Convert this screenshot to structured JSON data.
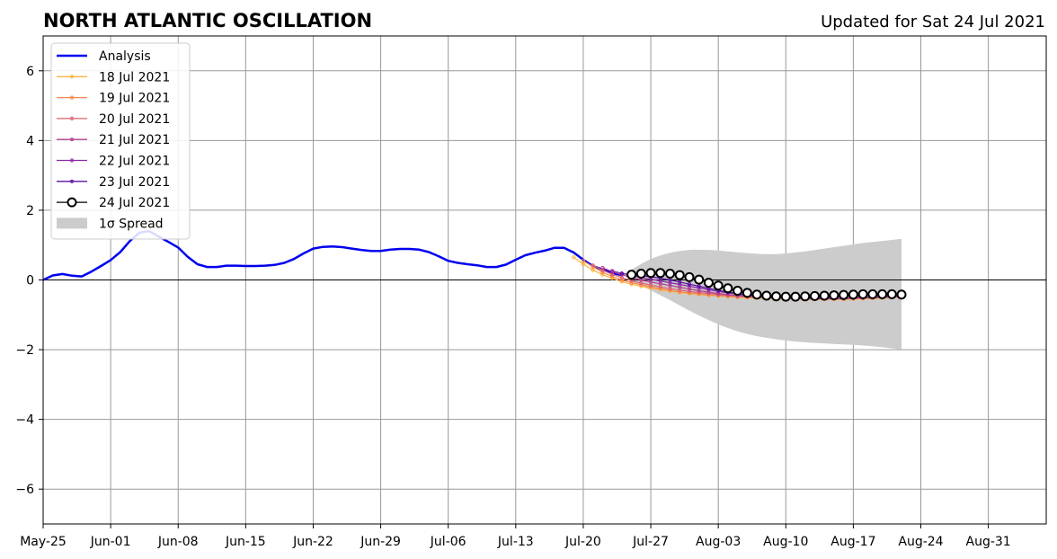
{
  "chart_data": {
    "type": "line",
    "title": "NORTH ATLANTIC OSCILLATION",
    "subtitle": "Updated for Sat 24 Jul 2021",
    "xlabel": "",
    "ylabel": "",
    "xlim": [
      "2021-05-25",
      "2021-09-06"
    ],
    "ylim": [
      -7,
      7
    ],
    "yticks": [
      -6,
      -4,
      -2,
      0,
      2,
      4,
      6
    ],
    "ytick_labels": [
      "−6",
      "−4",
      "−2",
      "0",
      "2",
      "4",
      "6"
    ],
    "xticks": [
      "2021-05-25",
      "2021-06-01",
      "2021-06-08",
      "2021-06-15",
      "2021-06-22",
      "2021-06-29",
      "2021-07-06",
      "2021-07-13",
      "2021-07-20",
      "2021-07-27",
      "2021-08-03",
      "2021-08-10",
      "2021-08-17",
      "2021-08-24",
      "2021-08-31"
    ],
    "xtick_labels": [
      "May-25",
      "Jun-01",
      "Jun-08",
      "Jun-15",
      "Jun-22",
      "Jun-29",
      "Jul-06",
      "Jul-13",
      "Jul-20",
      "Jul-27",
      "Aug-03",
      "Aug-10",
      "Aug-17",
      "Aug-24",
      "Aug-31"
    ],
    "grid": true,
    "legend_position": "top-left",
    "zero_line": true,
    "series": [
      {
        "name": "Analysis",
        "color": "#0000ee",
        "x": [
          "2021-05-25",
          "2021-05-26",
          "2021-05-27",
          "2021-05-28",
          "2021-05-29",
          "2021-05-30",
          "2021-05-31",
          "2021-06-01",
          "2021-06-02",
          "2021-06-03",
          "2021-06-04",
          "2021-06-05",
          "2021-06-06",
          "2021-06-07",
          "2021-06-08",
          "2021-06-09",
          "2021-06-10",
          "2021-06-11",
          "2021-06-12",
          "2021-06-13",
          "2021-06-14",
          "2021-06-15",
          "2021-06-16",
          "2021-06-17",
          "2021-06-18",
          "2021-06-19",
          "2021-06-20",
          "2021-06-21",
          "2021-06-22",
          "2021-06-23",
          "2021-06-24",
          "2021-06-25",
          "2021-06-26",
          "2021-06-27",
          "2021-06-28",
          "2021-06-29",
          "2021-06-30",
          "2021-07-01",
          "2021-07-02",
          "2021-07-03",
          "2021-07-04",
          "2021-07-05",
          "2021-07-06",
          "2021-07-07",
          "2021-07-08",
          "2021-07-09",
          "2021-07-10",
          "2021-07-11",
          "2021-07-12",
          "2021-07-13",
          "2021-07-14",
          "2021-07-15",
          "2021-07-16",
          "2021-07-17",
          "2021-07-18",
          "2021-07-19",
          "2021-07-20",
          "2021-07-21",
          "2021-07-22",
          "2021-07-23",
          "2021-07-24"
        ],
        "values": [
          0.0,
          0.13,
          0.17,
          0.12,
          0.1,
          0.24,
          0.4,
          0.57,
          0.8,
          1.12,
          1.36,
          1.4,
          1.24,
          1.09,
          0.93,
          0.66,
          0.45,
          0.37,
          0.37,
          0.41,
          0.41,
          0.4,
          0.4,
          0.41,
          0.43,
          0.49,
          0.6,
          0.76,
          0.9,
          0.95,
          0.96,
          0.94,
          0.9,
          0.86,
          0.83,
          0.83,
          0.87,
          0.89,
          0.89,
          0.87,
          0.8,
          0.68,
          0.55,
          0.49,
          0.45,
          0.42,
          0.37,
          0.37,
          0.44,
          0.58,
          0.71,
          0.78,
          0.84,
          0.92,
          0.92,
          0.79,
          0.58,
          0.4,
          0.3,
          0.2,
          0.14
        ]
      },
      {
        "name": "18 Jul 2021",
        "color": "#fbb33e",
        "x": [
          "2021-07-19",
          "2021-07-20",
          "2021-07-21",
          "2021-07-22",
          "2021-07-23",
          "2021-07-24",
          "2021-07-25",
          "2021-07-26",
          "2021-07-27",
          "2021-07-28",
          "2021-07-29",
          "2021-07-30",
          "2021-07-31",
          "2021-08-01",
          "2021-08-02",
          "2021-08-03",
          "2021-08-04",
          "2021-08-05",
          "2021-08-06",
          "2021-08-07",
          "2021-08-08",
          "2021-08-09",
          "2021-08-10",
          "2021-08-11",
          "2021-08-12",
          "2021-08-13",
          "2021-08-14",
          "2021-08-15",
          "2021-08-16",
          "2021-08-17",
          "2021-08-18",
          "2021-08-19",
          "2021-08-20",
          "2021-08-21",
          "2021-08-22"
        ],
        "values": [
          0.65,
          0.45,
          0.28,
          0.15,
          0.05,
          -0.05,
          -0.12,
          -0.18,
          -0.23,
          -0.28,
          -0.32,
          -0.36,
          -0.39,
          -0.42,
          -0.44,
          -0.46,
          -0.48,
          -0.5,
          -0.51,
          -0.52,
          -0.53,
          -0.54,
          -0.55,
          -0.55,
          -0.56,
          -0.56,
          -0.56,
          -0.56,
          -0.56,
          -0.55,
          -0.54,
          -0.53,
          -0.52,
          -0.5,
          -0.49
        ]
      },
      {
        "name": "19 Jul 2021",
        "color": "#f5884a",
        "x": [
          "2021-07-20",
          "2021-07-21",
          "2021-07-22",
          "2021-07-23",
          "2021-07-24",
          "2021-07-25",
          "2021-07-26",
          "2021-07-27",
          "2021-07-28",
          "2021-07-29",
          "2021-07-30",
          "2021-07-31",
          "2021-08-01",
          "2021-08-02",
          "2021-08-03",
          "2021-08-04",
          "2021-08-05",
          "2021-08-06",
          "2021-08-07",
          "2021-08-08",
          "2021-08-09",
          "2021-08-10",
          "2021-08-11",
          "2021-08-12",
          "2021-08-13",
          "2021-08-14",
          "2021-08-15",
          "2021-08-16",
          "2021-08-17",
          "2021-08-18",
          "2021-08-19",
          "2021-08-20",
          "2021-08-21",
          "2021-08-22"
        ],
        "values": [
          0.55,
          0.38,
          0.22,
          0.1,
          0.0,
          -0.08,
          -0.14,
          -0.2,
          -0.25,
          -0.3,
          -0.34,
          -0.37,
          -0.4,
          -0.43,
          -0.45,
          -0.47,
          -0.49,
          -0.5,
          -0.51,
          -0.52,
          -0.53,
          -0.54,
          -0.54,
          -0.55,
          -0.55,
          -0.55,
          -0.55,
          -0.55,
          -0.54,
          -0.53,
          -0.52,
          -0.51,
          -0.5,
          -0.48
        ]
      },
      {
        "name": "20 Jul 2021",
        "color": "#de5f6f",
        "x": [
          "2021-07-21",
          "2021-07-22",
          "2021-07-23",
          "2021-07-24",
          "2021-07-25",
          "2021-07-26",
          "2021-07-27",
          "2021-07-28",
          "2021-07-29",
          "2021-07-30",
          "2021-07-31",
          "2021-08-01",
          "2021-08-02",
          "2021-08-03",
          "2021-08-04",
          "2021-08-05",
          "2021-08-06",
          "2021-08-07",
          "2021-08-08",
          "2021-08-09",
          "2021-08-10",
          "2021-08-11",
          "2021-08-12",
          "2021-08-13",
          "2021-08-14",
          "2021-08-15",
          "2021-08-16",
          "2021-08-17",
          "2021-08-18",
          "2021-08-19",
          "2021-08-20",
          "2021-08-21",
          "2021-08-22"
        ],
        "values": [
          0.42,
          0.28,
          0.16,
          0.07,
          -0.02,
          -0.09,
          -0.15,
          -0.2,
          -0.25,
          -0.29,
          -0.33,
          -0.36,
          -0.39,
          -0.42,
          -0.44,
          -0.46,
          -0.47,
          -0.48,
          -0.49,
          -0.5,
          -0.5,
          -0.51,
          -0.51,
          -0.51,
          -0.51,
          -0.51,
          -0.51,
          -0.5,
          -0.5,
          -0.49,
          -0.48,
          -0.47,
          -0.46
        ]
      },
      {
        "name": "21 Jul 2021",
        "color": "#b33c8e",
        "x": [
          "2021-07-22",
          "2021-07-23",
          "2021-07-24",
          "2021-07-25",
          "2021-07-26",
          "2021-07-27",
          "2021-07-28",
          "2021-07-29",
          "2021-07-30",
          "2021-07-31",
          "2021-08-01",
          "2021-08-02",
          "2021-08-03",
          "2021-08-04",
          "2021-08-05",
          "2021-08-06",
          "2021-08-07",
          "2021-08-08",
          "2021-08-09",
          "2021-08-10",
          "2021-08-11",
          "2021-08-12",
          "2021-08-13",
          "2021-08-14",
          "2021-08-15",
          "2021-08-16",
          "2021-08-17",
          "2021-08-18",
          "2021-08-19",
          "2021-08-20",
          "2021-08-21",
          "2021-08-22"
        ],
        "values": [
          0.35,
          0.24,
          0.15,
          0.07,
          0.0,
          -0.06,
          -0.11,
          -0.16,
          -0.21,
          -0.26,
          -0.31,
          -0.35,
          -0.39,
          -0.42,
          -0.45,
          -0.47,
          -0.49,
          -0.5,
          -0.51,
          -0.52,
          -0.52,
          -0.53,
          -0.53,
          -0.53,
          -0.53,
          -0.52,
          -0.52,
          -0.51,
          -0.5,
          -0.49,
          -0.48,
          -0.47
        ]
      },
      {
        "name": "22 Jul 2021",
        "color": "#8b28a6",
        "x": [
          "2021-07-23",
          "2021-07-24",
          "2021-07-25",
          "2021-07-26",
          "2021-07-27",
          "2021-07-28",
          "2021-07-29",
          "2021-07-30",
          "2021-07-31",
          "2021-08-01",
          "2021-08-02",
          "2021-08-03",
          "2021-08-04",
          "2021-08-05",
          "2021-08-06",
          "2021-08-07",
          "2021-08-08",
          "2021-08-09",
          "2021-08-10",
          "2021-08-11",
          "2021-08-12",
          "2021-08-13",
          "2021-08-14",
          "2021-08-15",
          "2021-08-16",
          "2021-08-17",
          "2021-08-18",
          "2021-08-19",
          "2021-08-20",
          "2021-08-21",
          "2021-08-22"
        ],
        "values": [
          0.26,
          0.19,
          0.13,
          0.07,
          0.02,
          -0.03,
          -0.08,
          -0.13,
          -0.18,
          -0.23,
          -0.28,
          -0.33,
          -0.37,
          -0.41,
          -0.44,
          -0.47,
          -0.49,
          -0.51,
          -0.52,
          -0.53,
          -0.53,
          -0.54,
          -0.54,
          -0.53,
          -0.53,
          -0.52,
          -0.51,
          -0.5,
          -0.49,
          -0.48,
          -0.47
        ]
      },
      {
        "name": "23 Jul 2021",
        "color": "#5a0fa0",
        "x": [
          "2021-07-24",
          "2021-07-25",
          "2021-07-26",
          "2021-07-27",
          "2021-07-28",
          "2021-07-29",
          "2021-07-30",
          "2021-07-31",
          "2021-08-01",
          "2021-08-02",
          "2021-08-03",
          "2021-08-04",
          "2021-08-05",
          "2021-08-06",
          "2021-08-07",
          "2021-08-08",
          "2021-08-09",
          "2021-08-10",
          "2021-08-11",
          "2021-08-12",
          "2021-08-13",
          "2021-08-14",
          "2021-08-15",
          "2021-08-16",
          "2021-08-17",
          "2021-08-18",
          "2021-08-19",
          "2021-08-20",
          "2021-08-21",
          "2021-08-22"
        ],
        "values": [
          0.18,
          0.15,
          0.12,
          0.09,
          0.05,
          0.0,
          -0.06,
          -0.12,
          -0.18,
          -0.24,
          -0.3,
          -0.35,
          -0.39,
          -0.42,
          -0.45,
          -0.47,
          -0.49,
          -0.5,
          -0.5,
          -0.5,
          -0.5,
          -0.49,
          -0.48,
          -0.47,
          -0.46,
          -0.45,
          -0.44,
          -0.43,
          -0.42,
          -0.41
        ]
      },
      {
        "name": "24 Jul 2021",
        "color": "#000000",
        "marker": "open-circle",
        "x": [
          "2021-07-25",
          "2021-07-26",
          "2021-07-27",
          "2021-07-28",
          "2021-07-29",
          "2021-07-30",
          "2021-07-31",
          "2021-08-01",
          "2021-08-02",
          "2021-08-03",
          "2021-08-04",
          "2021-08-05",
          "2021-08-06",
          "2021-08-07",
          "2021-08-08",
          "2021-08-09",
          "2021-08-10",
          "2021-08-11",
          "2021-08-12",
          "2021-08-13",
          "2021-08-14",
          "2021-08-15",
          "2021-08-16",
          "2021-08-17",
          "2021-08-18",
          "2021-08-19",
          "2021-08-20",
          "2021-08-21",
          "2021-08-22"
        ],
        "values": [
          0.15,
          0.18,
          0.2,
          0.2,
          0.18,
          0.14,
          0.08,
          0.01,
          -0.08,
          -0.16,
          -0.24,
          -0.31,
          -0.37,
          -0.42,
          -0.45,
          -0.47,
          -0.48,
          -0.48,
          -0.47,
          -0.46,
          -0.45,
          -0.44,
          -0.43,
          -0.42,
          -0.41,
          -0.41,
          -0.41,
          -0.41,
          -0.42
        ]
      }
    ],
    "spread": {
      "name": "1σ Spread",
      "color": "#cccccc",
      "x": [
        "2021-07-25",
        "2021-07-27",
        "2021-07-29",
        "2021-07-31",
        "2021-08-02",
        "2021-08-04",
        "2021-08-06",
        "2021-08-08",
        "2021-08-10",
        "2021-08-12",
        "2021-08-14",
        "2021-08-16",
        "2021-08-18",
        "2021-08-20",
        "2021-08-22"
      ],
      "upper": [
        0.3,
        0.6,
        0.78,
        0.86,
        0.86,
        0.82,
        0.77,
        0.74,
        0.76,
        0.82,
        0.9,
        0.98,
        1.06,
        1.12,
        1.18
      ],
      "lower": [
        -0.05,
        -0.3,
        -0.58,
        -0.88,
        -1.15,
        -1.38,
        -1.55,
        -1.66,
        -1.74,
        -1.79,
        -1.82,
        -1.85,
        -1.88,
        -1.93,
        -2.0
      ]
    }
  }
}
